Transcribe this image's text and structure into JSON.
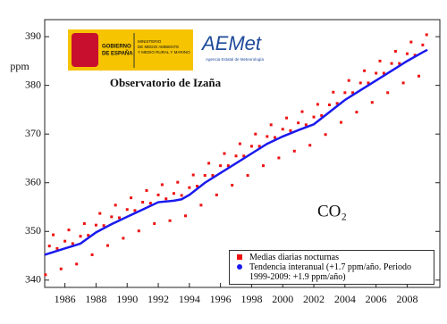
{
  "chart_data": {
    "type": "scatter",
    "title": "Observatorio de Izaña",
    "ylabel": "ppm",
    "annotation": "CO₂",
    "logos": {
      "gov1": "GOBIERNO",
      "gov2": "DE ESPAÑA",
      "min1": "MINISTERIO",
      "min2": "DE MEDIO AMBIENTE",
      "min3": "Y MEDIO RURAL Y MARINO",
      "aemet": "AEMet",
      "aemet_sub": "Agencia Estatal de Meteorología"
    },
    "xlim": [
      1984.7,
      2010.1
    ],
    "ylim": [
      338.5,
      393.5
    ],
    "xticks": [
      1986,
      1988,
      1990,
      1992,
      1994,
      1996,
      1998,
      2000,
      2002,
      2004,
      2006,
      2008
    ],
    "yticks": [
      340,
      350,
      360,
      370,
      380,
      390
    ],
    "series": [
      {
        "name": "Medias diarias nocturnas",
        "color": "#ee1111",
        "kind": "points",
        "x": [
          1984.75,
          1985,
          1985.25,
          1985.5,
          1985.75,
          1986,
          1986.25,
          1986.5,
          1986.75,
          1987,
          1987.25,
          1987.5,
          1987.75,
          1988,
          1988.25,
          1988.5,
          1988.75,
          1989,
          1989.25,
          1989.5,
          1989.75,
          1990,
          1990.25,
          1990.5,
          1990.75,
          1991,
          1991.25,
          1991.5,
          1991.75,
          1992,
          1992.25,
          1992.5,
          1992.75,
          1993,
          1993.25,
          1993.5,
          1993.75,
          1994,
          1994.25,
          1994.5,
          1994.75,
          1995,
          1995.25,
          1995.5,
          1995.75,
          1996,
          1996.25,
          1996.5,
          1996.75,
          1997,
          1997.25,
          1997.5,
          1997.75,
          1998,
          1998.25,
          1998.5,
          1998.75,
          1999,
          1999.25,
          1999.5,
          1999.75,
          2000,
          2000.25,
          2000.5,
          2000.75,
          2001,
          2001.25,
          2001.5,
          2001.75,
          2002,
          2002.25,
          2002.5,
          2002.75,
          2003,
          2003.25,
          2003.5,
          2003.75,
          2004,
          2004.25,
          2004.5,
          2004.75,
          2005,
          2005.25,
          2005.5,
          2005.75,
          2006,
          2006.25,
          2006.5,
          2006.75,
          2007,
          2007.25,
          2007.5,
          2007.75,
          2008,
          2008.25,
          2008.5,
          2008.75,
          2009,
          2009.25
        ],
        "values": [
          341.1,
          347.0,
          349.3,
          346.5,
          342.3,
          348.0,
          350.3,
          347.5,
          343.3,
          349.0,
          351.6,
          349.2,
          345.2,
          351.3,
          353.7,
          351.2,
          347.1,
          353.0,
          355.4,
          352.8,
          348.6,
          354.5,
          356.9,
          354.3,
          350.1,
          356.0,
          358.4,
          355.8,
          351.6,
          357.5,
          359.6,
          356.7,
          352.2,
          357.8,
          360.1,
          357.4,
          353.2,
          359.0,
          361.6,
          359.3,
          355.4,
          361.5,
          364.0,
          361.5,
          357.5,
          363.5,
          366.0,
          363.5,
          359.5,
          365.5,
          368.0,
          365.5,
          361.5,
          367.5,
          370.0,
          367.5,
          363.5,
          369.5,
          371.9,
          369.3,
          365.1,
          371.0,
          373.3,
          370.7,
          366.5,
          372.3,
          374.6,
          371.9,
          367.7,
          373.5,
          376.1,
          373.8,
          369.9,
          376.0,
          378.6,
          376.3,
          372.4,
          378.5,
          381.0,
          378.5,
          374.5,
          380.5,
          383.0,
          380.5,
          376.5,
          382.5,
          385.0,
          382.5,
          378.5,
          384.5,
          387.0,
          384.5,
          380.5,
          386.5,
          388.9,
          386.2,
          381.9,
          388.3,
          390.4
        ]
      },
      {
        "name": "Tendencia interanual (+1.7 ppm/año. Periodo 1999-2009: +1.9 ppm/año)",
        "color": "#1a1aee",
        "kind": "line",
        "x": [
          1984.7,
          1985,
          1986,
          1986.5,
          1987,
          1988,
          1989,
          1990,
          1991,
          1992,
          1993,
          1993.5,
          1994,
          1995,
          1996,
          1997,
          1998,
          1999,
          2000,
          2001,
          2002,
          2003,
          2004,
          2005,
          2006,
          2007,
          2008,
          2009,
          2009.3
        ],
        "values": [
          345.2,
          345.5,
          346.5,
          347,
          347.5,
          349.8,
          351.5,
          353,
          354.5,
          356,
          356.3,
          356.6,
          357.5,
          360,
          362,
          364,
          366,
          368,
          369.5,
          370.8,
          372,
          374.5,
          377,
          379,
          381,
          383,
          385,
          386.8,
          387.3
        ]
      }
    ]
  }
}
